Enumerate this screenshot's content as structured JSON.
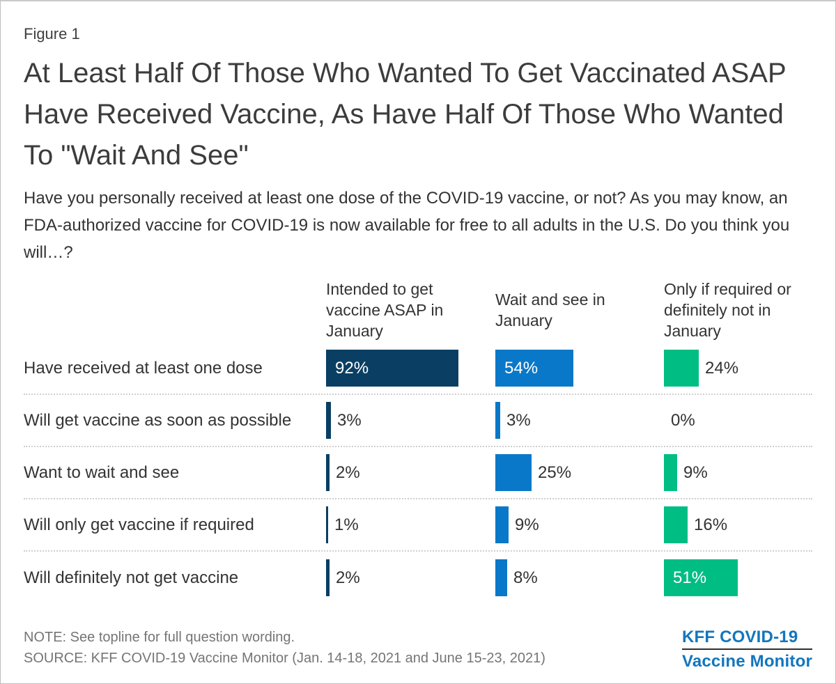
{
  "figure_label": "Figure 1",
  "title": "At Least Half Of Those Who Wanted To Get Vaccinated ASAP Have Received Vaccine, As Have Half Of Those Who Wanted To \"Wait And See\"",
  "subtitle": "Have you personally received at least one dose of the COVID-19 vaccine, or not? As you may know, an FDA-authorized vaccine for COVID-19 is now available for free to all adults in the U.S. Do you think you will…?",
  "chart_data": {
    "type": "bar",
    "orientation": "horizontal",
    "unit": "%",
    "value_range": [
      0,
      100
    ],
    "grid": "dotted row separators",
    "categories": [
      "Have received at least one dose",
      "Will get vaccine as soon as possible",
      "Want to wait and see",
      "Will only get vaccine if required",
      "Will definitely not get vaccine"
    ],
    "series": [
      {
        "name": "Intended to get vaccine ASAP in January",
        "color": "#0A3F63",
        "values": [
          92,
          3,
          2,
          1,
          2
        ]
      },
      {
        "name": "Wait and see in January",
        "color": "#0A78C8",
        "values": [
          54,
          3,
          25,
          9,
          8
        ]
      },
      {
        "name": "Only if required or definitely not in January",
        "color": "#00BD84",
        "values": [
          24,
          0,
          9,
          16,
          51
        ]
      }
    ]
  },
  "footer": {
    "note": "NOTE: See topline for full question wording.",
    "source": "SOURCE: KFF COVID-19 Vaccine Monitor (Jan. 14-18, 2021 and June 15-23, 2021)",
    "logo_line1": "KFF COVID-19",
    "logo_line2": "Vaccine Monitor",
    "logo_color": "#1276BD"
  }
}
